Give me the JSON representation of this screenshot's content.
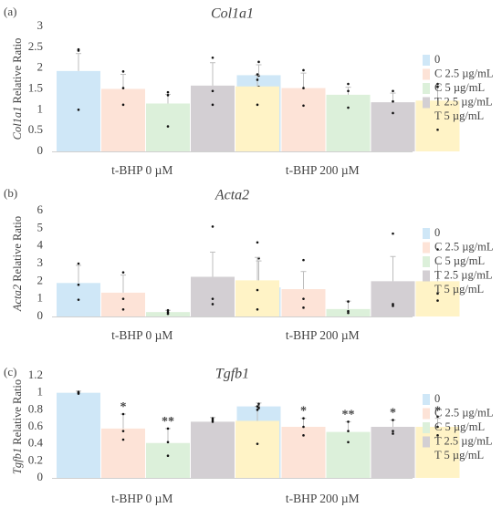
{
  "colors": {
    "c0": "#cfe7f7",
    "c1": "#fde3d7",
    "c2": "#dcf0da",
    "c3": "#d3cfd3",
    "c4": "#fff3c6",
    "axis": "#d0d0d0",
    "text": "#444444",
    "error": "#bdbdbd",
    "dot": "#111111"
  },
  "chart_data": [
    {
      "type": "bar",
      "panel": "(a)",
      "title": "Col1a1",
      "ylabel_italic": "Col1a1",
      "ylabel_rest": " Relative Ratio",
      "ylim": [
        0,
        3
      ],
      "yticks": [
        "0",
        "0.5",
        "1",
        "1.5",
        "2",
        "2.5",
        "3"
      ],
      "categories": [
        "t-BHP 0 µM",
        "t-BHP 200 µM"
      ],
      "legend": [
        "0",
        "C 2.5 µg/mL",
        "C 5 µg/mL",
        "T 2.5 µg/mL",
        "T 5 µg/mL"
      ],
      "series": [
        {
          "name": "0",
          "values": [
            1.93,
            1.83
          ],
          "err": [
            0.42,
            0.25
          ],
          "points": [
            [
              2.45,
              2.42,
              1.0
            ],
            [
              2.15,
              1.82,
              1.55
            ]
          ],
          "sig": [
            "",
            ""
          ]
        },
        {
          "name": "C 2.5 µg/mL",
          "values": [
            1.5,
            1.52
          ],
          "err": [
            0.35,
            0.36
          ],
          "points": [
            [
              1.92,
              1.52,
              1.12
            ],
            [
              1.95,
              1.52,
              1.1
            ]
          ],
          "sig": [
            "",
            ""
          ]
        },
        {
          "name": "C 5 µg/mL",
          "values": [
            1.15,
            1.36
          ],
          "err": [
            0.22,
            0.18
          ],
          "points": [
            [
              1.42,
              1.35,
              0.6
            ],
            [
              1.62,
              1.45,
              1.05
            ]
          ],
          "sig": [
            "",
            ""
          ]
        },
        {
          "name": "T 2.5 µg/mL",
          "values": [
            1.58,
            1.18
          ],
          "err": [
            0.55,
            0.22
          ],
          "points": [
            [
              2.25,
              1.45,
              1.12
            ],
            [
              1.45,
              1.2,
              0.92
            ]
          ],
          "sig": [
            "",
            ""
          ]
        },
        {
          "name": "T 5 µg/mL",
          "values": [
            1.56,
            1.22
          ],
          "err": [
            0.27,
            0.35
          ],
          "points": [
            [
              1.85,
              1.72,
              1.12
            ],
            [
              1.62,
              1.55,
              0.52
            ]
          ],
          "sig": [
            "",
            ""
          ]
        }
      ]
    },
    {
      "type": "bar",
      "panel": "(b)",
      "title": "Acta2",
      "ylabel_italic": "Acta2",
      "ylabel_rest": " Relative Ratio",
      "ylim": [
        0,
        6
      ],
      "yticks": [
        "0",
        "1",
        "2",
        "3",
        "4",
        "5",
        "6"
      ],
      "categories": [
        "t-BHP 0 µM",
        "t-BHP 200 µM"
      ],
      "legend": [
        "0",
        "C 2.5 µg/mL",
        "C 5 µg/mL",
        "T 2.5 µg/mL",
        "T 5 µg/mL"
      ],
      "series": [
        {
          "name": "0",
          "values": [
            1.9,
            1.65
          ],
          "err": [
            1.0,
            1.5
          ],
          "points": [
            [
              3.0,
              1.8,
              0.95
            ],
            [
              3.3,
              1.0,
              0.85
            ]
          ],
          "sig": [
            "",
            ""
          ]
        },
        {
          "name": "C 2.5 µg/mL",
          "values": [
            1.35,
            1.55
          ],
          "err": [
            1.0,
            1.0
          ],
          "points": [
            [
              2.5,
              1.0,
              0.4
            ],
            [
              3.2,
              1.0,
              0.5
            ]
          ],
          "sig": [
            "",
            ""
          ]
        },
        {
          "name": "C 5 µg/mL",
          "values": [
            0.25,
            0.42
          ],
          "err": [
            0.1,
            0.45
          ],
          "points": [
            [
              0.35,
              0.25,
              0.15
            ],
            [
              0.85,
              0.3,
              0.2
            ]
          ],
          "sig": [
            "",
            ""
          ]
        },
        {
          "name": "T 2.5 µg/mL",
          "values": [
            2.25,
            2.0
          ],
          "err": [
            1.4,
            1.4
          ],
          "points": [
            [
              5.1,
              1.0,
              0.7
            ],
            [
              4.7,
              0.7,
              0.6
            ]
          ],
          "sig": [
            "",
            ""
          ]
        },
        {
          "name": "T 5 µg/mL",
          "values": [
            2.05,
            2.0
          ],
          "err": [
            1.3,
            1.0
          ],
          "points": [
            [
              4.2,
              1.5,
              0.4
            ],
            [
              3.8,
              1.3,
              0.9
            ]
          ],
          "sig": [
            "",
            ""
          ]
        }
      ]
    },
    {
      "type": "bar",
      "panel": "(c)",
      "title": "Tgfb1",
      "ylabel_italic": "Tgfb1",
      "ylabel_rest": " Relative Ratio",
      "ylim": [
        0,
        1.2
      ],
      "yticks": [
        "0",
        "0.2",
        "0.4",
        "0.6",
        "0.8",
        "1",
        "1.2"
      ],
      "categories": [
        "t-BHP 0 µM",
        "t-BHP 200 µM"
      ],
      "legend": [
        "0",
        "C 2.5 µg/mL",
        "C 5 µg/mL",
        "T 2.5 µg/mL",
        "T 5 µg/mL"
      ],
      "series": [
        {
          "name": "0",
          "values": [
            1.0,
            0.84
          ],
          "err": [
            0.02,
            0.04
          ],
          "points": [
            [
              1.01,
              1.0,
              0.99
            ],
            [
              0.87,
              0.84,
              0.82
            ]
          ],
          "sig": [
            "",
            ""
          ]
        },
        {
          "name": "C 2.5 µg/mL",
          "values": [
            0.58,
            0.6
          ],
          "err": [
            0.17,
            0.1
          ],
          "points": [
            [
              0.75,
              0.55,
              0.45
            ],
            [
              0.7,
              0.6,
              0.5
            ]
          ],
          "sig": [
            "*",
            "*"
          ]
        },
        {
          "name": "C 5 µg/mL",
          "values": [
            0.41,
            0.54
          ],
          "err": [
            0.17,
            0.12
          ],
          "points": [
            [
              0.58,
              0.42,
              0.26
            ],
            [
              0.66,
              0.55,
              0.42
            ]
          ],
          "sig": [
            "**",
            "**"
          ]
        },
        {
          "name": "T 2.5 µg/mL",
          "values": [
            0.66,
            0.6
          ],
          "err": [
            0.05,
            0.08
          ],
          "points": [
            [
              0.7,
              0.68,
              0.66
            ],
            [
              0.68,
              0.55,
              0.52
            ]
          ],
          "sig": [
            "",
            "*"
          ]
        },
        {
          "name": "T 5 µg/mL",
          "values": [
            0.67,
            0.6
          ],
          "err": [
            0.17,
            0.1
          ],
          "points": [
            [
              0.84,
              0.8,
              0.4
            ],
            [
              0.72,
              0.6,
              0.5
            ]
          ],
          "sig": [
            "",
            "*"
          ]
        }
      ]
    }
  ]
}
